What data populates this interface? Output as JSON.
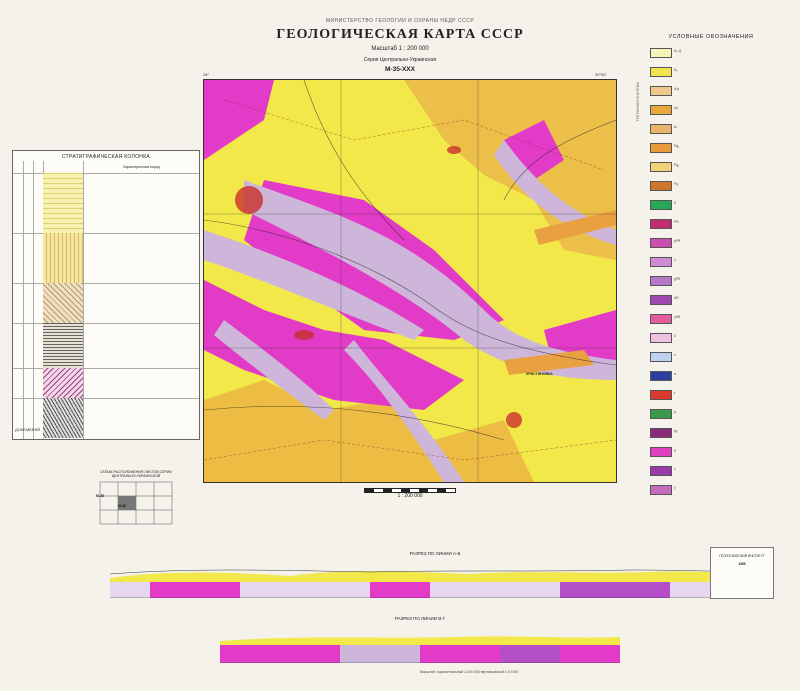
{
  "header": {
    "ministry": "МИНИСТЕРСТВО ГЕОЛОГИИ И ОХРАНЫ НЕДР СССР",
    "title": "ГЕОЛОГИЧЕСКАЯ КАРТА СССР",
    "scale": "Масштаб 1 : 200 000",
    "series": "Серия Центрально-Украинская",
    "sheet": "M-35-XXX"
  },
  "map": {
    "corner_tl": "28°",
    "corner_tr": "30°00'",
    "city_label": "ХРИСТИНОВКА",
    "bar_scale": "1 : 200 000",
    "colors": {
      "quaternary_yellow": "#f2e84a",
      "neogene_orange": "#e9b24a",
      "granite_magenta": "#e23bc7",
      "valley_lilac": "#cdb6da",
      "paleogene_red": "#c8312a"
    }
  },
  "strat": {
    "title": "СТРАТИГРАФИЧЕСКАЯ КОЛОНКА",
    "column_header": "Характеристика пород",
    "bottom_label": "ДОКЕМБРИЙ"
  },
  "legend": {
    "title": "УСЛОВНЫЕ ОБОЗНАЧЕНИЯ",
    "system_label": "ТРЕТИЧНАЯ СИСТЕМА",
    "items": [
      {
        "code": "N₂-Q",
        "color": "#f7f4b8"
      },
      {
        "code": "N₂",
        "color": "#f3e24c"
      },
      {
        "code": "N₁s",
        "color": "#f0c98a"
      },
      {
        "code": "N₁t",
        "color": "#eaa83a"
      },
      {
        "code": "N₁",
        "color": "#e7b46a"
      },
      {
        "code": "Pg₃",
        "color": "#e89a3a"
      },
      {
        "code": "Pg₂",
        "color": "#f1d27b"
      },
      {
        "code": "Pg",
        "color": "#d0752e"
      },
      {
        "code": "K",
        "color": "#2aa85a"
      },
      {
        "code": "PR",
        "color": "#c03070"
      },
      {
        "code": "γPR",
        "color": "#cc4fb0"
      },
      {
        "code": "γ",
        "color": "#d08ad8"
      },
      {
        "code": "gPR",
        "color": "#b777c8"
      },
      {
        "code": "AR",
        "color": "#9e4ab0"
      },
      {
        "code": "γAR",
        "color": "#e55a9a"
      },
      {
        "code": "δ",
        "color": "#f0c0e0"
      },
      {
        "code": "ν",
        "color": "#c0d0f0"
      },
      {
        "code": "σ",
        "color": "#2a3fa0"
      },
      {
        "code": "ε",
        "color": "#da3a2e"
      },
      {
        "code": "μ",
        "color": "#3a9a4a"
      },
      {
        "code": "ργ",
        "color": "#8a2a7a"
      },
      {
        "code": "χ",
        "color": "#e040c0"
      },
      {
        "code": "λ",
        "color": "#9a3aa8"
      },
      {
        "code": "ξ",
        "color": "#c86ac0"
      }
    ]
  },
  "index": {
    "title": "СХЕМА РАСПОЛОЖЕНИЯ ЛИСТОВ СЕРИИ ЦЕНТРАЛЬНО-УКРАИНСКОЙ",
    "sheet_a": "M-35",
    "sheet_b": "M-36"
  },
  "sections": {
    "a_title": "РАЗРЕЗ ПО ЛИНИИ А-Б",
    "b_title": "РАЗРЕЗ ПО ЛИНИИ В-Г"
  },
  "stamp": {
    "title": "ГЕОЛОГИЧЕСКИЙ ИНСТИТУТ",
    "year": "1965"
  },
  "bottom": {
    "vertical_scale": "Масштаб: горизонтальный 1:200 000 вертикальный 1:10 000"
  }
}
